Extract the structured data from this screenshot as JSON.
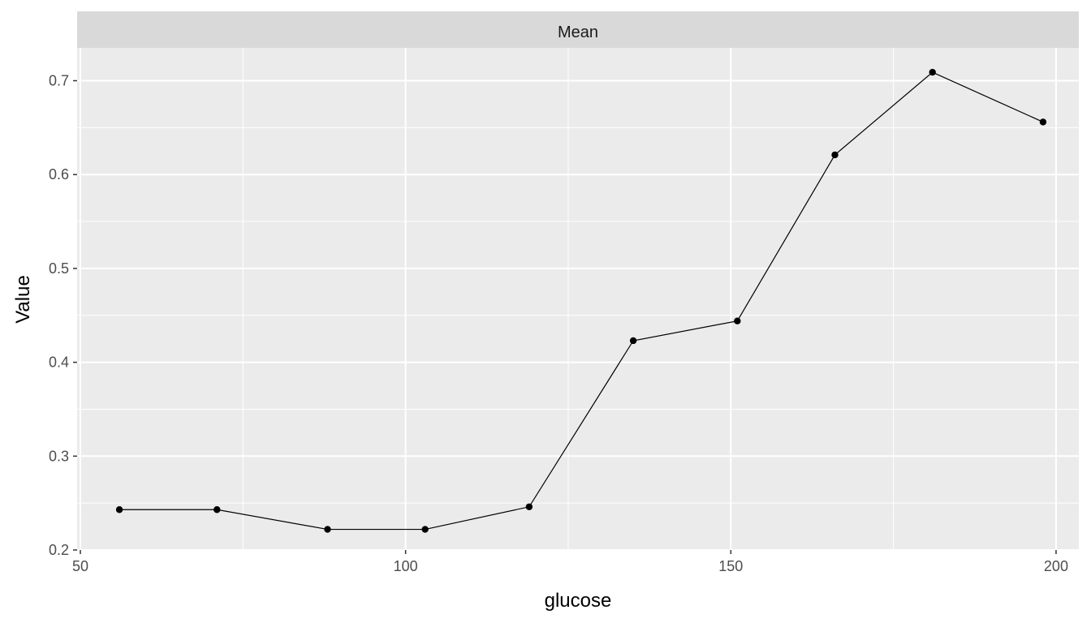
{
  "chart_data": {
    "type": "line",
    "facet_label": "Mean",
    "xlabel": "glucose",
    "ylabel": "Value",
    "xlim": [
      49.5,
      203.5
    ],
    "ylim": [
      0.2,
      0.735
    ],
    "x_ticks": [
      50,
      100,
      150,
      200
    ],
    "y_ticks": [
      0.2,
      0.3,
      0.4,
      0.5,
      0.6,
      0.7
    ],
    "x_tick_labels": [
      "50",
      "100",
      "150",
      "200"
    ],
    "y_tick_labels": [
      "0.2",
      "0.3",
      "0.4",
      "0.5",
      "0.6",
      "0.7"
    ],
    "grid": true,
    "legend": "none",
    "series": [
      {
        "x": [
          56,
          71,
          88,
          103,
          119,
          135,
          151,
          166,
          181,
          198
        ],
        "y": [
          0.243,
          0.243,
          0.222,
          0.222,
          0.246,
          0.423,
          0.444,
          0.621,
          0.709,
          0.656
        ],
        "color": "#000000"
      }
    ],
    "panel_background": "#ebebeb",
    "strip_background": "#d9d9d9",
    "grid_color": "#ffffff"
  }
}
